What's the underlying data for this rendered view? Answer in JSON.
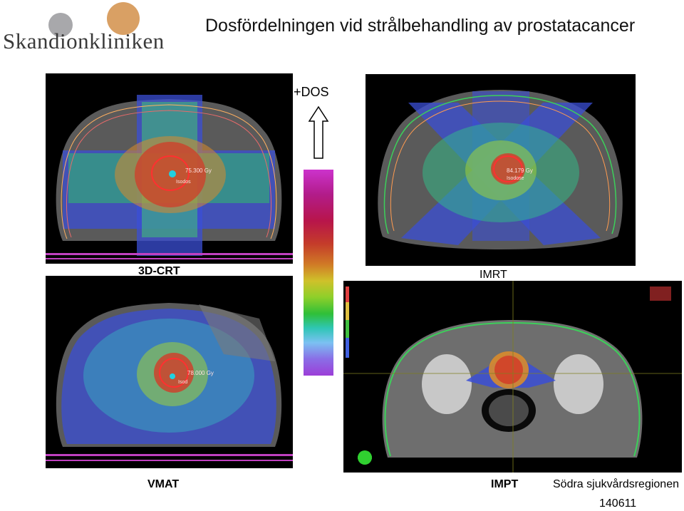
{
  "header": {
    "logo_text": "Skandionkliniken",
    "title": "Dosfördelningen vid strålbehandling av prostatacancer"
  },
  "scale": {
    "label": "+DOS"
  },
  "panels": {
    "crt": {
      "label": "3D-CRT",
      "dose_text": "75.300 Gy",
      "target_text": "Isodos"
    },
    "imrt": {
      "label": "IMRT",
      "dose_text": "84.179 Gy",
      "target_text": "Isodose"
    },
    "vmat": {
      "label": "VMAT",
      "dose_text": "78.000 Gy",
      "target_text": "Isod"
    },
    "impt": {
      "label": "IMPT"
    }
  },
  "footer": {
    "region": "Södra sjukvårdsregionen",
    "code": "140611"
  },
  "colors": {
    "logo_grey": "#a8a8ab",
    "logo_orange": "#d9a064",
    "ct_bg": "#000000"
  }
}
